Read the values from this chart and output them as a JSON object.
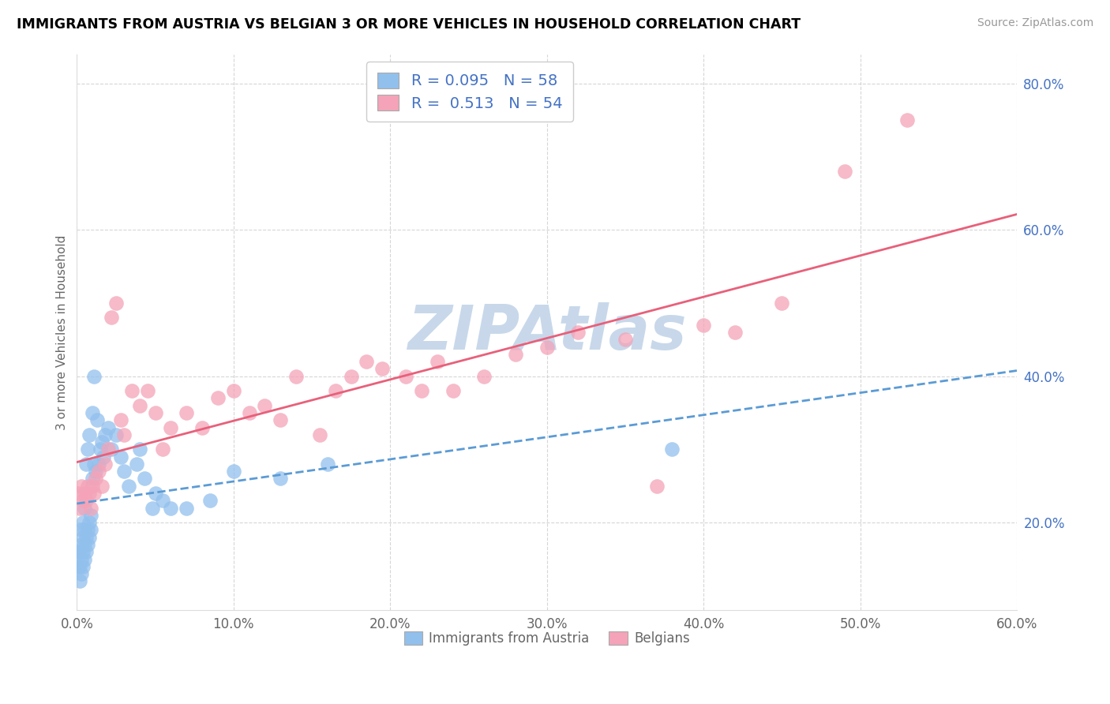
{
  "title": "IMMIGRANTS FROM AUSTRIA VS BELGIAN 3 OR MORE VEHICLES IN HOUSEHOLD CORRELATION CHART",
  "source": "Source: ZipAtlas.com",
  "ylabel": "3 or more Vehicles in Household",
  "legend_label_1": "Immigrants from Austria",
  "legend_label_2": "Belgians",
  "r1": 0.095,
  "n1": 58,
  "r2": 0.513,
  "n2": 54,
  "xlim": [
    0.0,
    0.6
  ],
  "ylim": [
    0.08,
    0.84
  ],
  "xticks": [
    0.0,
    0.1,
    0.2,
    0.3,
    0.4,
    0.5,
    0.6
  ],
  "yticks": [
    0.2,
    0.4,
    0.6,
    0.8
  ],
  "xticklabels": [
    "0.0%",
    "10.0%",
    "20.0%",
    "30.0%",
    "40.0%",
    "50.0%",
    "60.0%"
  ],
  "yticklabels": [
    "20.0%",
    "40.0%",
    "60.0%",
    "80.0%"
  ],
  "color1": "#92C0ED",
  "color2": "#F4A3B8",
  "trendline1_color": "#5B9BD5",
  "trendline2_color": "#E8607A",
  "watermark": "ZIPAtlas",
  "watermark_color": "#C8D8EA",
  "scatter1_x": [
    0.001,
    0.001,
    0.002,
    0.002,
    0.002,
    0.003,
    0.003,
    0.003,
    0.003,
    0.004,
    0.004,
    0.004,
    0.004,
    0.005,
    0.005,
    0.005,
    0.005,
    0.006,
    0.006,
    0.006,
    0.007,
    0.007,
    0.007,
    0.008,
    0.008,
    0.008,
    0.009,
    0.009,
    0.01,
    0.01,
    0.011,
    0.011,
    0.012,
    0.013,
    0.014,
    0.015,
    0.016,
    0.017,
    0.018,
    0.02,
    0.022,
    0.025,
    0.028,
    0.03,
    0.033,
    0.038,
    0.04,
    0.043,
    0.048,
    0.05,
    0.055,
    0.06,
    0.07,
    0.085,
    0.1,
    0.13,
    0.16,
    0.38
  ],
  "scatter1_y": [
    0.14,
    0.16,
    0.12,
    0.14,
    0.16,
    0.13,
    0.15,
    0.17,
    0.19,
    0.14,
    0.16,
    0.18,
    0.2,
    0.15,
    0.17,
    0.19,
    0.22,
    0.16,
    0.18,
    0.28,
    0.17,
    0.19,
    0.3,
    0.18,
    0.2,
    0.32,
    0.19,
    0.21,
    0.26,
    0.35,
    0.28,
    0.4,
    0.27,
    0.34,
    0.28,
    0.3,
    0.31,
    0.29,
    0.32,
    0.33,
    0.3,
    0.32,
    0.29,
    0.27,
    0.25,
    0.28,
    0.3,
    0.26,
    0.22,
    0.24,
    0.23,
    0.22,
    0.22,
    0.23,
    0.27,
    0.26,
    0.28,
    0.3
  ],
  "scatter2_x": [
    0.001,
    0.002,
    0.003,
    0.004,
    0.005,
    0.006,
    0.007,
    0.008,
    0.009,
    0.01,
    0.011,
    0.012,
    0.014,
    0.016,
    0.018,
    0.02,
    0.022,
    0.025,
    0.028,
    0.03,
    0.035,
    0.04,
    0.045,
    0.05,
    0.055,
    0.06,
    0.07,
    0.08,
    0.09,
    0.1,
    0.11,
    0.12,
    0.13,
    0.14,
    0.155,
    0.165,
    0.175,
    0.185,
    0.195,
    0.21,
    0.22,
    0.23,
    0.24,
    0.26,
    0.28,
    0.3,
    0.32,
    0.35,
    0.37,
    0.4,
    0.42,
    0.45,
    0.49,
    0.53
  ],
  "scatter2_y": [
    0.24,
    0.22,
    0.25,
    0.23,
    0.24,
    0.23,
    0.25,
    0.24,
    0.22,
    0.25,
    0.24,
    0.26,
    0.27,
    0.25,
    0.28,
    0.3,
    0.48,
    0.5,
    0.34,
    0.32,
    0.38,
    0.36,
    0.38,
    0.35,
    0.3,
    0.33,
    0.35,
    0.33,
    0.37,
    0.38,
    0.35,
    0.36,
    0.34,
    0.4,
    0.32,
    0.38,
    0.4,
    0.42,
    0.41,
    0.4,
    0.38,
    0.42,
    0.38,
    0.4,
    0.43,
    0.44,
    0.46,
    0.45,
    0.25,
    0.47,
    0.46,
    0.5,
    0.68,
    0.75
  ]
}
